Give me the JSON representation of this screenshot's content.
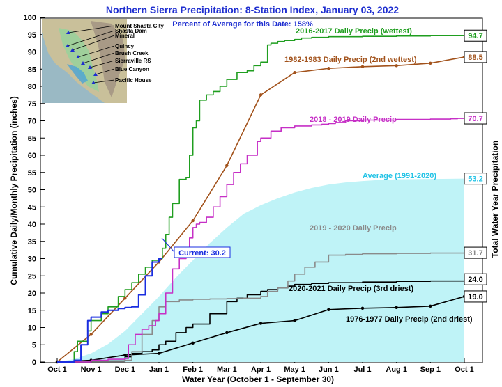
{
  "chart_data": {
    "type": "line",
    "title": "Northern Sierra Precipitation: 8-Station Index, January 03, 2022",
    "subtitle": "Percent of Average for this Date: 158%",
    "xlabel": "Water Year (October 1 - September 30)",
    "ylabel": "Cumulative Daily/Monthly Precipitation (inches)",
    "ylabel_right": "Total Water Year Precipitation",
    "ylim": [
      0,
      100
    ],
    "xlim": [
      0,
      12
    ],
    "y_ticks": [
      0,
      5,
      10,
      15,
      20,
      25,
      30,
      35,
      40,
      45,
      50,
      55,
      60,
      65,
      70,
      75,
      80,
      85,
      90,
      95,
      100
    ],
    "x_ticks": [
      {
        "value": 0,
        "label": "Oct 1"
      },
      {
        "value": 1,
        "label": "Nov 1"
      },
      {
        "value": 2,
        "label": "Dec 1"
      },
      {
        "value": 3,
        "label": "Jan 1"
      },
      {
        "value": 4,
        "label": "Feb 1"
      },
      {
        "value": 5,
        "label": "Mar 1"
      },
      {
        "value": 6,
        "label": "Apr 1"
      },
      {
        "value": 7,
        "label": "May 1"
      },
      {
        "value": 8,
        "label": "Jun 1"
      },
      {
        "value": 9,
        "label": "Jul 1"
      },
      {
        "value": 10,
        "label": "Aug 1"
      },
      {
        "value": 11,
        "label": "Sep 1"
      },
      {
        "value": 12,
        "label": "Oct 1"
      }
    ],
    "series": [
      {
        "name": "Average (1991-2020)",
        "kind": "area",
        "color": "#bff3f7",
        "label_color": "#22c3e6",
        "total": "53.2",
        "x": [
          0,
          0.5,
          1,
          1.5,
          2,
          2.5,
          3,
          3.5,
          4,
          4.5,
          5,
          5.5,
          6,
          6.5,
          7,
          7.5,
          8,
          8.5,
          9,
          9.5,
          10,
          11,
          12
        ],
        "y": [
          0,
          0.8,
          2.5,
          5.2,
          9.0,
          14.0,
          19.0,
          24.5,
          29.5,
          34.5,
          39.0,
          43.0,
          45.5,
          47.5,
          49.2,
          50.5,
          51.5,
          52.1,
          52.5,
          52.8,
          53.0,
          53.1,
          53.2
        ]
      },
      {
        "name": "2016-2017 Daily Precip (wettest)",
        "kind": "step",
        "color": "#1f9e1f",
        "total": "94.7",
        "x": [
          0,
          0.5,
          0.6,
          0.9,
          1.0,
          1.3,
          1.5,
          1.8,
          2.0,
          2.2,
          2.4,
          2.6,
          2.8,
          3.0,
          3.1,
          3.2,
          3.3,
          3.4,
          3.6,
          3.8,
          3.9,
          4.0,
          4.1,
          4.2,
          4.4,
          4.6,
          4.8,
          5.0,
          5.3,
          5.6,
          5.8,
          6.0,
          6.2,
          6.3,
          6.5,
          6.7,
          7.0,
          7.2,
          7.5,
          8.0,
          9.0,
          10.0,
          11.0,
          12.0
        ],
        "y": [
          0,
          3,
          6,
          9,
          12,
          14,
          16,
          19,
          21,
          23,
          25.5,
          27.5,
          29.5,
          30,
          33,
          37,
          42,
          46,
          53,
          53.5,
          60,
          68,
          70,
          76,
          77.5,
          78.5,
          80,
          82,
          84,
          84.5,
          86,
          87,
          92,
          92.5,
          93,
          93.3,
          93.6,
          94,
          94.2,
          94.4,
          94.5,
          94.6,
          94.7,
          94.7
        ]
      },
      {
        "name": "1982-1983 Daily Precip (2nd wettest)",
        "kind": "marker-line",
        "color": "#a2521b",
        "total": "88.5",
        "x": [
          0,
          1,
          2,
          3,
          4,
          5,
          6,
          7,
          8,
          9,
          10,
          11,
          12
        ],
        "y": [
          0,
          8.0,
          18.5,
          29.0,
          41.0,
          57.0,
          77.5,
          84.0,
          85.2,
          85.7,
          86.0,
          86.7,
          88.5
        ]
      },
      {
        "name": "2018 - 2019 Daily Precip",
        "kind": "step",
        "color": "#c62fc6",
        "total": "70.7",
        "x": [
          0,
          1.0,
          1.5,
          2.0,
          2.1,
          2.3,
          2.5,
          2.7,
          2.9,
          3.0,
          3.2,
          3.4,
          3.6,
          3.8,
          3.9,
          4.0,
          4.1,
          4.2,
          4.4,
          4.6,
          4.8,
          5.0,
          5.2,
          5.4,
          5.6,
          5.9,
          6.0,
          6.3,
          6.6,
          7.0,
          7.5,
          7.8,
          8.0,
          8.2,
          8.5,
          9.0,
          10.0,
          11.0,
          11.6,
          11.8,
          12.0
        ],
        "y": [
          0,
          0.5,
          0.8,
          1.0,
          5.0,
          8.0,
          9.5,
          10.5,
          12.0,
          14.0,
          20.0,
          27.0,
          30.0,
          32.0,
          36.0,
          39.0,
          40.0,
          40.5,
          42.0,
          45.0,
          48.0,
          51.5,
          55.0,
          57.5,
          60.0,
          64.0,
          65.0,
          67.0,
          68.0,
          68.5,
          68.8,
          69.0,
          69.2,
          69.5,
          70.0,
          70.2,
          70.4,
          70.5,
          70.6,
          70.7,
          70.7
        ]
      },
      {
        "name": "2019 - 2020 Daily Precip",
        "kind": "step",
        "color": "#8a8a8a",
        "total": "31.7",
        "x": [
          0,
          1.0,
          2.0,
          2.2,
          2.5,
          2.8,
          3.0,
          3.2,
          3.6,
          4.0,
          4.5,
          5.0,
          5.5,
          6.0,
          6.2,
          6.5,
          6.8,
          7.0,
          7.3,
          7.6,
          8.0,
          8.5,
          9.0,
          10.0,
          11.0,
          12.0
        ],
        "y": [
          0,
          0,
          0.5,
          3.0,
          8.0,
          12.0,
          16.0,
          17.5,
          18.0,
          18.2,
          18.3,
          18.4,
          18.5,
          19.0,
          20.5,
          21.5,
          23.5,
          25.5,
          27.5,
          29.0,
          31.0,
          31.2,
          31.4,
          31.5,
          31.6,
          31.7
        ]
      },
      {
        "name": "2020-2021 Daily Precip (3rd driest)",
        "kind": "step",
        "color": "#000000",
        "total": "24.0",
        "x": [
          0,
          1.0,
          2.0,
          2.2,
          2.5,
          2.8,
          3.0,
          3.2,
          3.5,
          3.8,
          4.0,
          4.5,
          5.0,
          5.3,
          5.6,
          6.0,
          6.2,
          6.5,
          6.8,
          7.0,
          7.5,
          8.0,
          9.0,
          10.0,
          11.0,
          12.0
        ],
        "y": [
          0,
          0.3,
          1.5,
          2.5,
          3.0,
          3.5,
          5.0,
          6.0,
          8.5,
          10.0,
          11.0,
          14.0,
          17.5,
          18.5,
          19.5,
          20.5,
          21.0,
          21.5,
          22.0,
          22.5,
          22.8,
          23.0,
          23.2,
          23.4,
          23.5,
          24.0
        ]
      },
      {
        "name": "1976-1977 Daily Precip (2nd driest)",
        "kind": "marker-line",
        "color": "#000000",
        "total": "19.0",
        "x": [
          0,
          1,
          2,
          3,
          4,
          5,
          6,
          7,
          8,
          9,
          10,
          11,
          12
        ],
        "y": [
          0,
          0.5,
          2.0,
          2.5,
          5.5,
          8.5,
          11.2,
          12.0,
          15.2,
          15.6,
          15.8,
          16.2,
          19.0
        ]
      },
      {
        "name": "Current",
        "kind": "step",
        "color": "#1a2ee0",
        "current_label": "Current: 30.2",
        "x": [
          0,
          0.5,
          0.7,
          0.9,
          1.0,
          1.3,
          1.5,
          1.8,
          2.0,
          2.2,
          2.4,
          2.6,
          2.8,
          3.0,
          3.06
        ],
        "y": [
          0,
          0.5,
          5.0,
          12.0,
          13.0,
          14.5,
          15.0,
          15.5,
          15.8,
          16.0,
          19.5,
          25.0,
          29.0,
          30.0,
          30.2
        ]
      }
    ],
    "labels": {
      "wettest": "2016-2017 Daily Precip (wettest)",
      "second_wettest": "1982-1983 Daily Precip (2nd wettest)",
      "precip_2018_2019": "2018 - 2019 Daily Precip",
      "average": "Average (1991-2020)",
      "precip_2019_2020": "2019 - 2020 Daily Precip",
      "third_driest": "2020-2021 Daily Precip (3rd driest)",
      "second_driest": "1976-1977 Daily Precip (2nd driest)"
    },
    "stations": [
      "Mount Shasta City",
      "Shasta Dam",
      "Mineral",
      "Quincy",
      "Brush Creek",
      "Sierraville RS",
      "Blue Canyon",
      "Pacific House"
    ]
  }
}
